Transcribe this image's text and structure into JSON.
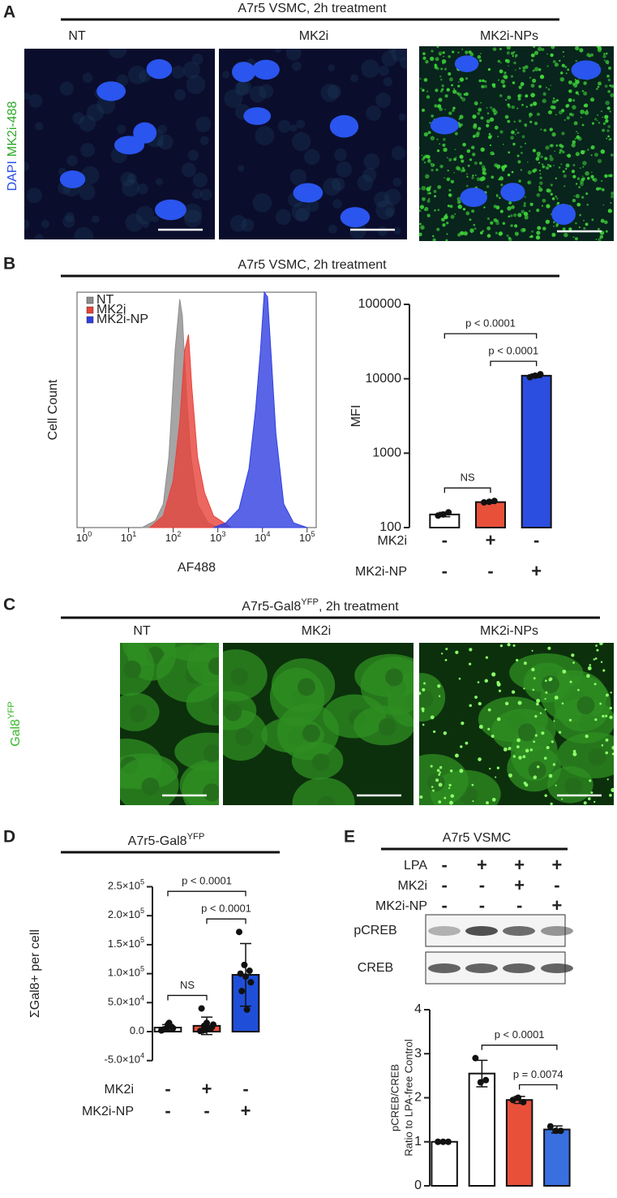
{
  "figure": {
    "panel_a": {
      "letter": "A",
      "header": "A7r5 VSMC, 2h treatment",
      "ylabel": [
        "DAPI",
        "MK2i-488"
      ],
      "images": [
        "NT",
        "MK2i",
        "MK2i-NPs"
      ]
    },
    "panel_b": {
      "letter": "B",
      "header": "A7r5 VSMC, 2h treatment"
    },
    "panel_c": {
      "letter": "C",
      "header": [
        "A7r5-Gal8",
        "YFP",
        ", 2h treatment"
      ],
      "ylabel": [
        "Gal8",
        "YFP"
      ],
      "images": [
        "NT",
        "MK2i",
        "MK2i-NPs"
      ]
    },
    "panel_d": {
      "letter": "D",
      "header": [
        "A7r5-Gal8",
        "YFP"
      ]
    },
    "panel_e": {
      "letter": "E",
      "header": "A7r5 VSMC",
      "blots": [
        "pCREB",
        "CREB"
      ]
    }
  },
  "chart_data": [
    {
      "type": "area",
      "xlabel": "AF488",
      "ylabel": "Cell Count",
      "log_x": true,
      "xlim": [
        0.7,
        160000
      ],
      "ylim": [
        0,
        100
      ],
      "xticks": [
        {
          "value": 1,
          "label": "10",
          "sup": "0"
        },
        {
          "value": 10,
          "label": "10",
          "sup": "1"
        },
        {
          "value": 100,
          "label": "10",
          "sup": "2"
        },
        {
          "value": 1000,
          "label": "10",
          "sup": "3"
        },
        {
          "value": 10000,
          "label": "10",
          "sup": "4"
        },
        {
          "value": 100000,
          "label": "10",
          "sup": "5"
        }
      ],
      "legend": "upper left",
      "series": [
        {
          "name": "NT",
          "color": "#8e8e8e",
          "x": [
            20,
            40,
            60,
            80,
            110,
            140,
            160,
            200,
            250,
            350,
            600,
            1000
          ],
          "values": [
            0,
            3,
            10,
            30,
            75,
            97,
            90,
            55,
            30,
            10,
            2,
            0
          ]
        },
        {
          "name": "MK2i",
          "color": "#e8413a",
          "x": [
            30,
            60,
            100,
            140,
            180,
            220,
            260,
            350,
            500,
            800,
            2000
          ],
          "values": [
            0,
            5,
            20,
            45,
            75,
            82,
            60,
            30,
            15,
            5,
            0
          ]
        },
        {
          "name": "MK2i-NP",
          "color": "#2f3fe0",
          "x": [
            800,
            1500,
            3000,
            5000,
            7000,
            9000,
            11000,
            13000,
            16000,
            20000,
            30000,
            50000,
            100000
          ],
          "values": [
            0,
            2,
            8,
            25,
            50,
            75,
            100,
            98,
            70,
            40,
            10,
            2,
            0
          ]
        }
      ]
    },
    {
      "type": "bar",
      "ylabel": "MFI",
      "log_y": true,
      "ylim": [
        100,
        100000
      ],
      "yticks": [
        100,
        1000,
        10000,
        100000
      ],
      "values": [
        150,
        220,
        11000
      ],
      "errors": [
        10,
        8,
        600
      ],
      "points": [
        [
          145,
          150,
          160
        ],
        [
          218,
          222,
          228
        ],
        [
          10500,
          11000,
          11500
        ]
      ],
      "colors": [
        "#ffffff",
        "#e8503a",
        "#2b4de0"
      ],
      "comparisons": [
        {
          "between": [
            0,
            1
          ],
          "label": "NS"
        },
        {
          "between": [
            1,
            2
          ],
          "label": "p < 0.0001"
        },
        {
          "between": [
            0,
            2
          ],
          "label": "p < 0.0001"
        }
      ],
      "treatments": [
        {
          "name": "MK2i",
          "signs": [
            "-",
            "+",
            "-"
          ]
        },
        {
          "name": "MK2i-NP",
          "signs": [
            "-",
            "-",
            "+"
          ]
        }
      ]
    },
    {
      "type": "bar",
      "ylabel": "ΣGal8+ per cell",
      "ylim": [
        -50000,
        250000
      ],
      "yticks": [
        {
          "value": -50000,
          "label": "-5.0×10",
          "sup": "4"
        },
        {
          "value": 0,
          "label": "0.0"
        },
        {
          "value": 50000,
          "label": "5.0×10",
          "sup": "4"
        },
        {
          "value": 100000,
          "label": "1.0×10",
          "sup": "5"
        },
        {
          "value": 150000,
          "label": "1.5×10",
          "sup": "5"
        },
        {
          "value": 200000,
          "label": "2.0×10",
          "sup": "5"
        },
        {
          "value": 250000,
          "label": "2.5×10",
          "sup": "5"
        }
      ],
      "values": [
        7000,
        10000,
        98000
      ],
      "errors": [
        5000,
        15000,
        54000
      ],
      "points": [
        [
          2000,
          5000,
          8000,
          3000,
          12000,
          6000,
          4000,
          15000
        ],
        [
          1000,
          3000,
          5000,
          40000,
          15000,
          8000,
          2000,
          6000,
          12000,
          10000
        ],
        [
          172000,
          115000,
          105000,
          100000,
          95000,
          85000,
          70000,
          38000
        ]
      ],
      "colors": [
        "#ffffff",
        "#e8503a",
        "#1f4fd8"
      ],
      "comparisons": [
        {
          "between": [
            0,
            1
          ],
          "label": "NS"
        },
        {
          "between": [
            1,
            2
          ],
          "label": "p < 0.0001"
        },
        {
          "between": [
            0,
            2
          ],
          "label": "p < 0.0001"
        }
      ],
      "treatments": [
        {
          "name": "MK2i",
          "signs": [
            "-",
            "+",
            "-"
          ]
        },
        {
          "name": "MK2i-NP",
          "signs": [
            "-",
            "-",
            "+"
          ]
        }
      ]
    },
    {
      "type": "bar",
      "ylabel": [
        "pCREB/CREB",
        "Ratio to LPA-free Control"
      ],
      "ylim": [
        0,
        4
      ],
      "yticks": [
        0,
        1,
        2,
        3,
        4
      ],
      "values": [
        1,
        2.55,
        1.95,
        1.28
      ],
      "errors": [
        0.01,
        0.3,
        0.08,
        0.08
      ],
      "points": [
        [
          1,
          1,
          1
        ],
        [
          2.9,
          2.35,
          2.4
        ],
        [
          1.95,
          2.0,
          1.9
        ],
        [
          1.35,
          1.25,
          1.25
        ]
      ],
      "colors": [
        "#ffffff",
        "#ffffff",
        "#e8503a",
        "#3a6fe0"
      ],
      "comparisons": [
        {
          "between": [
            2,
            3
          ],
          "label": "p = 0.0074"
        },
        {
          "between": [
            1,
            3
          ],
          "label": "p < 0.0001"
        }
      ],
      "treatments": [
        {
          "name": "LPA",
          "signs": [
            "-",
            "+",
            "+",
            "+"
          ]
        },
        {
          "name": "MK2i",
          "signs": [
            "-",
            "-",
            "+",
            "-"
          ]
        },
        {
          "name": "MK2i-NP",
          "signs": [
            "-",
            "-",
            "-",
            "+"
          ]
        }
      ]
    }
  ]
}
